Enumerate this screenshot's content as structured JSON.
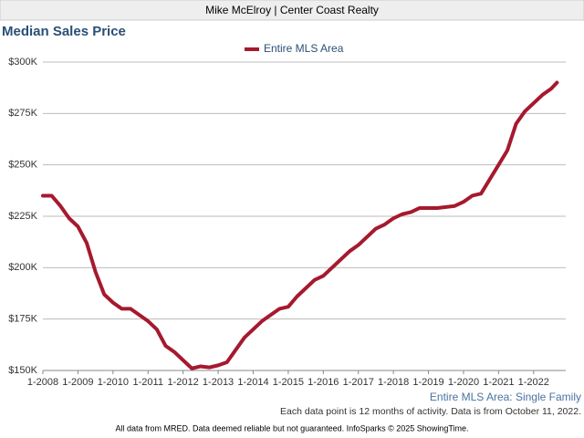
{
  "chart_data": {
    "type": "line",
    "header": "Mike McElroy | Center Coast Realty",
    "title": "Median Sales Price",
    "annotation": "Entire MLS Area: Single Family",
    "note": "Each data point is 12 months of activity. Data is from October 11, 2022.",
    "footer": "All data from MRED. Data deemed reliable but not guaranteed. InfoSparks © 2025 ShowingTime.",
    "legend": "top-center",
    "grid": true,
    "x": [
      "1-2008",
      "4-2008",
      "7-2008",
      "10-2008",
      "1-2009",
      "4-2009",
      "7-2009",
      "10-2009",
      "1-2010",
      "4-2010",
      "7-2010",
      "10-2010",
      "1-2011",
      "4-2011",
      "7-2011",
      "10-2011",
      "1-2012",
      "4-2012",
      "7-2012",
      "10-2012",
      "1-2013",
      "4-2013",
      "7-2013",
      "10-2013",
      "1-2014",
      "4-2014",
      "7-2014",
      "10-2014",
      "1-2015",
      "4-2015",
      "7-2015",
      "10-2015",
      "1-2016",
      "4-2016",
      "7-2016",
      "10-2016",
      "1-2017",
      "4-2017",
      "7-2017",
      "10-2017",
      "1-2018",
      "4-2018",
      "7-2018",
      "10-2018",
      "1-2019",
      "4-2019",
      "7-2019",
      "10-2019",
      "1-2020",
      "4-2020",
      "7-2020",
      "10-2020",
      "1-2021",
      "4-2021",
      "7-2021",
      "10-2021",
      "1-2022",
      "4-2022",
      "7-2022",
      "9-2022"
    ],
    "series": [
      {
        "name": "Entire MLS Area",
        "color": "#a6192e",
        "values": [
          235000,
          235000,
          230000,
          224000,
          220000,
          212000,
          198000,
          187000,
          183000,
          180000,
          180000,
          177000,
          174000,
          170000,
          162000,
          159000,
          155000,
          151000,
          152000,
          151500,
          152500,
          154000,
          160000,
          166000,
          170000,
          174000,
          177000,
          180000,
          181000,
          186000,
          190000,
          194000,
          196000,
          200000,
          204000,
          208000,
          211000,
          215000,
          219000,
          221000,
          224000,
          226000,
          227000,
          229000,
          229000,
          229000,
          229500,
          230000,
          232000,
          235000,
          236000,
          243000,
          250000,
          257000,
          270000,
          276000,
          280000,
          284000,
          287000,
          290000
        ]
      }
    ],
    "xlim": [
      "1-2008",
      "12-2022"
    ],
    "xticks": [
      "1-2008",
      "1-2009",
      "1-2010",
      "1-2011",
      "1-2012",
      "1-2013",
      "1-2014",
      "1-2015",
      "1-2016",
      "1-2017",
      "1-2018",
      "1-2019",
      "1-2020",
      "1-2021",
      "1-2022"
    ],
    "ylim": [
      150000,
      300000
    ],
    "yticks": [
      {
        "value": 150000,
        "label": "$150K"
      },
      {
        "value": 175000,
        "label": "$175K"
      },
      {
        "value": 200000,
        "label": "$200K"
      },
      {
        "value": 225000,
        "label": "$225K"
      },
      {
        "value": 250000,
        "label": "$250K"
      },
      {
        "value": 275000,
        "label": "$275K"
      },
      {
        "value": 300000,
        "label": "$300K"
      }
    ]
  }
}
